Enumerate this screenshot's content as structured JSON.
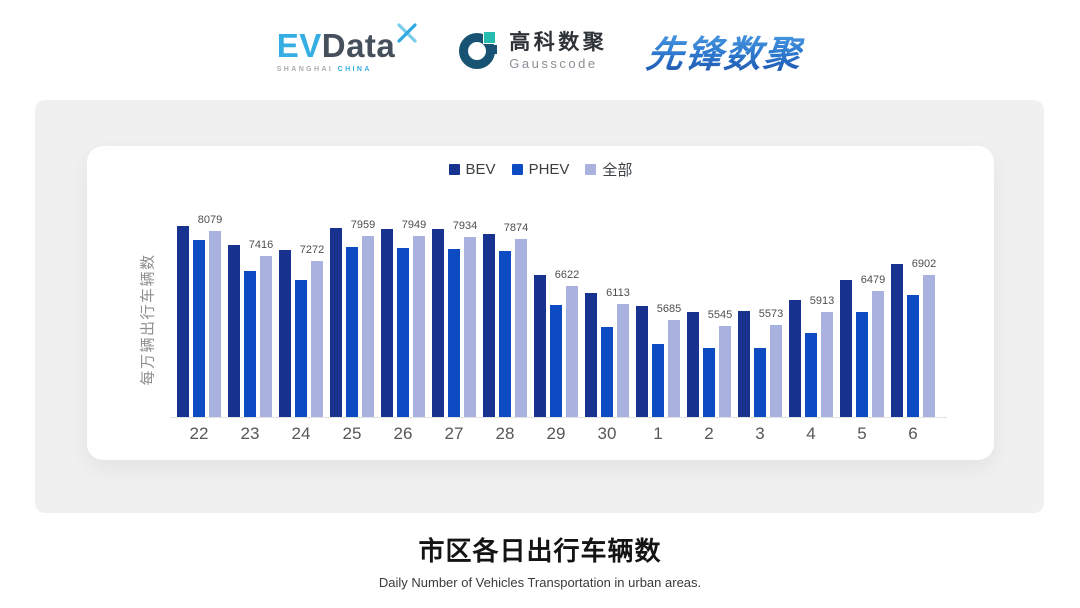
{
  "header": {
    "evdata": {
      "ev": "EV",
      "data": "Data",
      "sub_gray": "SHANGHAI",
      "sub_blue": "CHINA"
    },
    "gausscode": {
      "cn": "高科数聚",
      "en": "Gausscode"
    },
    "xianfeng": {
      "text": "先锋数聚"
    }
  },
  "chart_data": {
    "type": "bar",
    "title": "市区各日出行车辆数",
    "subtitle": "Daily Number of Vehicles Transportation in urban areas.",
    "ylabel": "每万辆出行车辆数",
    "xlabel": "",
    "legend_position": "top",
    "grid": false,
    "y_axis_ticks_visible": false,
    "ylim": [
      3080,
      8360
    ],
    "categories": [
      "22",
      "23",
      "24",
      "25",
      "26",
      "27",
      "28",
      "29",
      "30",
      "1",
      "2",
      "3",
      "4",
      "5",
      "6"
    ],
    "series": [
      {
        "name": "BEV",
        "color": "#17338F",
        "values": [
          8240,
          7710,
          7590,
          8170,
          8145,
          8135,
          8020,
          6920,
          6435,
          6065,
          5905,
          5930,
          6220,
          6765,
          7195
        ],
        "values_estimated": true
      },
      {
        "name": "PHEV",
        "color": "#0C4BC2",
        "values": [
          7860,
          7005,
          6785,
          7655,
          7635,
          7605,
          7545,
          6095,
          5510,
          5035,
          4945,
          4930,
          5340,
          5915,
          6360
        ],
        "values_estimated": true
      },
      {
        "name": "全部",
        "color": "#A9B2DF",
        "values": [
          8079,
          7416,
          7272,
          7959,
          7949,
          7934,
          7874,
          6622,
          6113,
          5685,
          5545,
          5573,
          5913,
          6479,
          6902
        ],
        "labels_shown": true
      }
    ]
  },
  "colors": {
    "panel_bg": "#F0F0F1",
    "card_bg": "#FFFFFF",
    "axis_line": "#E3E3E4",
    "evdata_blue": "#35AEE3",
    "evdata_dark": "#46505C",
    "gausscode_navy": "#185373",
    "gausscode_teal": "#26BDB0",
    "xianfeng_blue": "#2E79CE"
  }
}
